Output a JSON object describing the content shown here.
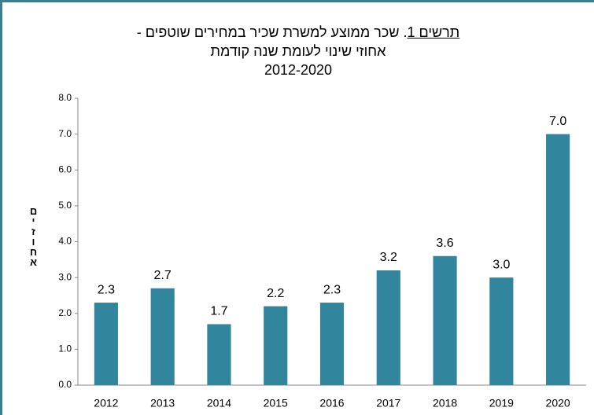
{
  "chart_data": {
    "type": "bar",
    "title_label": "תרשים 1",
    "title": ". שכר ממוצע למשרת שכיר במחירים שוטפים -",
    "subtitle": "אחוזי שינוי לעומת שנה קודמת",
    "period": "2012-2020",
    "y_label": "אחוזים",
    "categories": [
      "2012",
      "2013",
      "2014",
      "2015",
      "2016",
      "2017",
      "2018",
      "2019",
      "2020"
    ],
    "values": [
      2.3,
      2.7,
      1.7,
      2.2,
      2.3,
      3.2,
      3.6,
      3.0,
      7.0
    ],
    "value_labels": [
      "2.3",
      "2.7",
      "1.7",
      "2.2",
      "2.3",
      "3.2",
      "3.6",
      "3.0",
      "7.0"
    ],
    "color": "#31859c",
    "ylim": [
      0,
      8
    ],
    "yticks": [
      {
        "value": 0,
        "label": "0.0"
      },
      {
        "value": 1,
        "label": "1.0"
      },
      {
        "value": 2,
        "label": "2.0"
      },
      {
        "value": 3,
        "label": "3.0"
      },
      {
        "value": 4,
        "label": "4.0"
      },
      {
        "value": 5,
        "label": "5.0"
      },
      {
        "value": 6,
        "label": "6.0"
      },
      {
        "value": 7,
        "label": "7.0"
      },
      {
        "value": 8,
        "label": "8.0"
      }
    ],
    "grid": false
  }
}
